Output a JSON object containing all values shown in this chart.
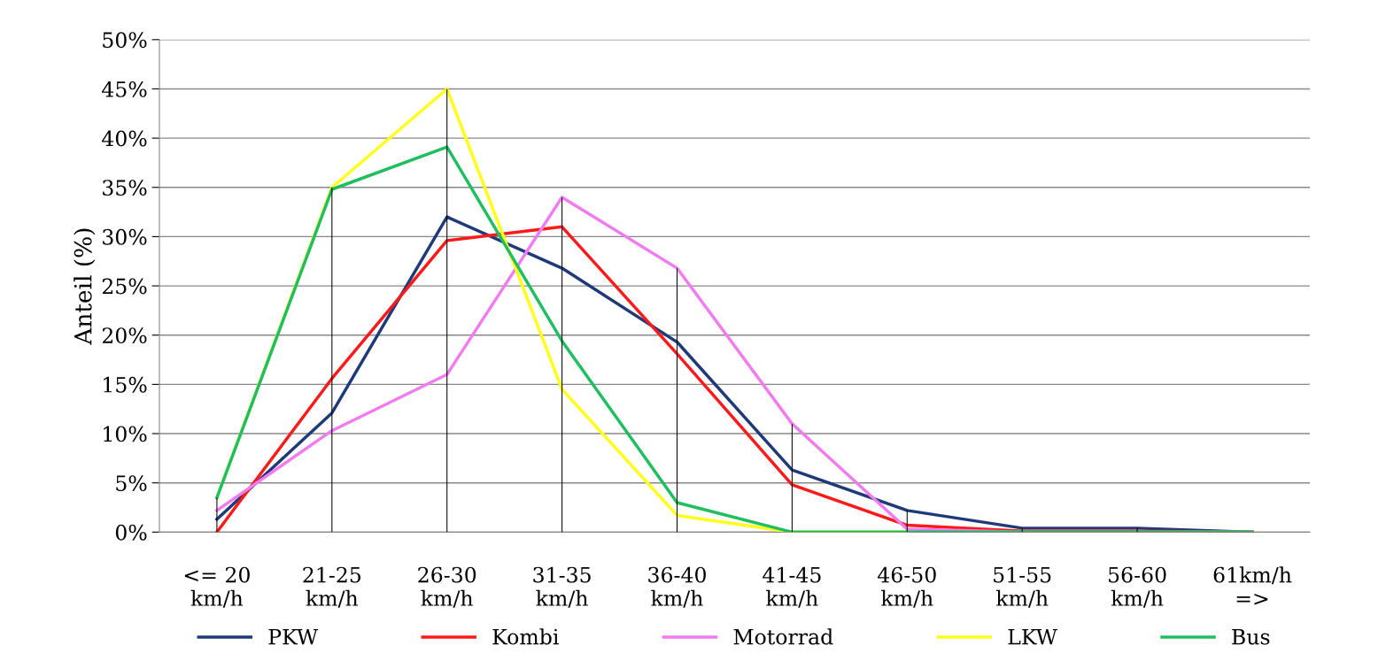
{
  "chart_data": {
    "type": "line",
    "ylabel": "Anteil (%)",
    "categories": [
      "<= 20\nkm/h",
      "21-25\nkm/h",
      "26-30\nkm/h",
      "31-35\nkm/h",
      "36-40\nkm/h",
      "41-45\nkm/h",
      "46-50\nkm/h",
      "51-55\nkm/h",
      "56-60\nkm/h",
      "61km/h\n=>"
    ],
    "series": [
      {
        "type": "bar",
        "color": "#000000",
        "values": [
          3.5,
          35,
          45,
          34,
          26.8,
          11,
          2.2,
          0.4,
          0.4,
          0
        ]
      },
      {
        "name": "PKW",
        "color": "#1f3a78",
        "values": [
          1.3,
          12.1,
          32,
          26.8,
          19.3,
          6.3,
          2.2,
          0.4,
          0.4,
          0
        ]
      },
      {
        "name": "Kombi",
        "color": "#ff1a1a",
        "values": [
          0,
          15.6,
          29.6,
          31,
          18.1,
          4.8,
          0.7,
          0.1,
          0.1,
          0
        ]
      },
      {
        "name": "Motorrad",
        "color": "#f07cf0",
        "values": [
          2.2,
          10.3,
          16,
          34,
          26.8,
          11,
          0.3,
          0,
          0,
          0
        ]
      },
      {
        "name": "LKW",
        "color": "#ffff1a",
        "values": [
          3.5,
          35,
          45,
          14.5,
          1.7,
          0,
          0,
          null,
          null,
          null
        ]
      },
      {
        "name": "Bus",
        "color": "#1fbf5f",
        "values": [
          3.5,
          34.8,
          39.1,
          19.4,
          3,
          0,
          0,
          0,
          0,
          0
        ]
      }
    ],
    "ylim": [
      0,
      50
    ],
    "yticks": [
      {
        "value": 0,
        "label": "0%"
      },
      {
        "value": 5,
        "label": "5%"
      },
      {
        "value": 10,
        "label": "10%"
      },
      {
        "value": 15,
        "label": "15%"
      },
      {
        "value": 20,
        "label": "20%"
      },
      {
        "value": 25,
        "label": "25%"
      },
      {
        "value": 30,
        "label": "30%"
      },
      {
        "value": 35,
        "label": "35%"
      },
      {
        "value": 40,
        "label": "40%"
      },
      {
        "value": 45,
        "label": "45%"
      },
      {
        "value": 50,
        "label": "50%"
      }
    ],
    "grid": "y",
    "legend": "bottom",
    "marker": "none",
    "line_style": "solid"
  }
}
